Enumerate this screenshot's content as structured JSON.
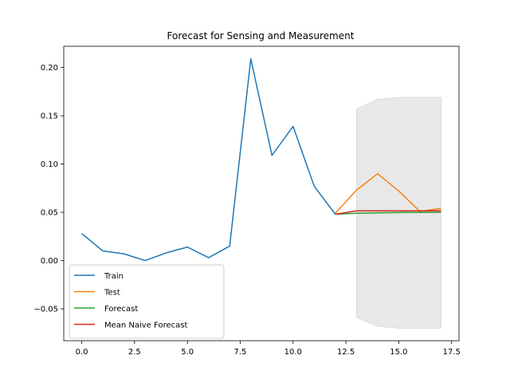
{
  "chart_data": {
    "type": "line",
    "title": "Forecast for Sensing and Measurement",
    "xlabel": "",
    "ylabel": "",
    "xlim": [
      -0.85,
      17.85
    ],
    "ylim": [
      -0.083,
      0.222
    ],
    "x_ticks": [
      0.0,
      2.5,
      5.0,
      7.5,
      10.0,
      12.5,
      15.0,
      17.5
    ],
    "x_tick_labels": [
      "0.0",
      "2.5",
      "5.0",
      "7.5",
      "10.0",
      "12.5",
      "15.0",
      "17.5"
    ],
    "y_ticks": [
      -0.05,
      0.0,
      0.05,
      0.1,
      0.15,
      0.2
    ],
    "y_tick_labels": [
      "−0.05",
      "0.00",
      "0.05",
      "0.10",
      "0.15",
      "0.20"
    ],
    "grid": false,
    "legend_position": "lower-left",
    "series": [
      {
        "name": "Train",
        "color": "#1f77b4",
        "x": [
          0,
          1,
          2,
          3,
          4,
          5,
          6,
          7,
          8,
          9,
          10,
          11,
          12
        ],
        "y": [
          0.028,
          0.01,
          0.007,
          0.0,
          0.008,
          0.014,
          0.003,
          0.015,
          0.209,
          0.109,
          0.139,
          0.077,
          0.048
        ]
      },
      {
        "name": "Test",
        "color": "#ff7f0e",
        "x": [
          12,
          13,
          14,
          15,
          16,
          17
        ],
        "y": [
          0.049,
          0.073,
          0.09,
          0.072,
          0.051,
          0.054
        ]
      },
      {
        "name": "Forecast",
        "color": "#2ca02c",
        "x": [
          12,
          13,
          14,
          15,
          16,
          17
        ],
        "y": [
          0.048,
          0.049,
          0.0495,
          0.0498,
          0.0499,
          0.05
        ]
      },
      {
        "name": "Mean Naive Forecast",
        "color": "#d62728",
        "x": [
          12,
          13,
          14,
          15,
          16,
          17
        ],
        "y": [
          0.048,
          0.0515,
          0.0515,
          0.0515,
          0.0515,
          0.0515
        ]
      }
    ],
    "confidence_band": {
      "color": "#e8e8e8",
      "x": [
        13,
        14,
        15,
        16,
        17
      ],
      "upper": [
        0.157,
        0.167,
        0.169,
        0.169,
        0.169
      ],
      "lower": [
        -0.059,
        -0.068,
        -0.07,
        -0.07,
        -0.07
      ]
    }
  }
}
